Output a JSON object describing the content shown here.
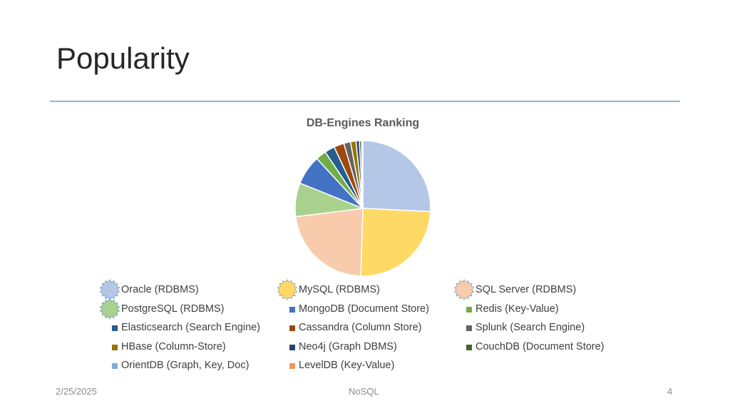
{
  "slide": {
    "title": "Popularity",
    "footer_date": "2/25/2025",
    "footer_center": "NoSQL",
    "footer_page": "4"
  },
  "chart_data": {
    "type": "pie",
    "title": "DB-Engines Ranking",
    "legend_position": "bottom",
    "categories": [
      "Oracle (RDBMS)",
      "MySQL (RDBMS)",
      "SQL Server (RDBMS)",
      "PostgreSQL (RDBMS)",
      "MongoDB (Document Store)",
      "Redis (Key-Value)",
      "Elasticsearch (Search Engine)",
      "Cassandra (Column Store)",
      "Splunk (Search Engine)",
      "HBase (Column-Store)",
      "Neo4j (Graph DBMS)",
      "CouchDB (Document Store)",
      "OrientDB (Graph, Key, Doc)",
      "LevelDB (Key-Value)"
    ],
    "values": [
      1280,
      1230,
      1120,
      400,
      350,
      125,
      120,
      120,
      80,
      65,
      40,
      25,
      12,
      4
    ],
    "colors": [
      "#b4c7e7",
      "#ffd966",
      "#f8cbad",
      "#a9d18e",
      "#4472c4",
      "#70ad47",
      "#255e91",
      "#9e480e",
      "#636363",
      "#997300",
      "#264478",
      "#43682b",
      "#7cafdd",
      "#f1975a"
    ],
    "highlighted": [
      0,
      1,
      2,
      3
    ]
  }
}
